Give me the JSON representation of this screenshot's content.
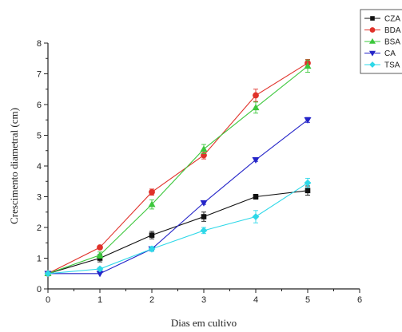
{
  "chart_data": {
    "type": "line",
    "title": "",
    "xlabel": "Dias em cultivo",
    "ylabel": "Crescimento diametral (cm)",
    "xlim": [
      0,
      6
    ],
    "ylim": [
      0,
      8
    ],
    "xticks": [
      "0",
      "1",
      "2",
      "3",
      "4",
      "5",
      "6"
    ],
    "yticks": [
      "0",
      "1",
      "2",
      "3",
      "4",
      "5",
      "6",
      "7",
      "8"
    ],
    "grid": false,
    "legend_position": "top-right",
    "x": [
      0,
      1,
      2,
      3,
      4,
      5
    ],
    "series": [
      {
        "name": "CZA",
        "color": "#111111",
        "marker": "square",
        "values": [
          0.5,
          1.0,
          1.75,
          2.35,
          3.0,
          3.2
        ],
        "errors": [
          0.03,
          0.12,
          0.12,
          0.15,
          0.08,
          0.15
        ]
      },
      {
        "name": "BDA",
        "color": "#e0322a",
        "marker": "circle",
        "values": [
          0.5,
          1.35,
          3.15,
          4.35,
          6.3,
          7.35
        ],
        "errors": [
          0.03,
          0.05,
          0.1,
          0.12,
          0.2,
          0.12
        ]
      },
      {
        "name": "BSA",
        "color": "#3cc73c",
        "marker": "triangle-up",
        "values": [
          0.5,
          1.1,
          2.75,
          4.55,
          5.9,
          7.25
        ],
        "errors": [
          0.03,
          0.1,
          0.15,
          0.15,
          0.18,
          0.2
        ]
      },
      {
        "name": "CA",
        "color": "#2424c8",
        "marker": "triangle-down",
        "values": [
          0.5,
          0.5,
          1.3,
          2.8,
          4.2,
          5.5
        ],
        "errors": [
          0.03,
          0.03,
          0.05,
          0.05,
          0.05,
          0.08
        ]
      },
      {
        "name": "TSA",
        "color": "#2ed8e8",
        "marker": "diamond",
        "values": [
          0.5,
          0.65,
          1.3,
          1.9,
          2.35,
          3.45
        ],
        "errors": [
          0.03,
          0.05,
          0.08,
          0.1,
          0.2,
          0.15
        ]
      }
    ]
  }
}
